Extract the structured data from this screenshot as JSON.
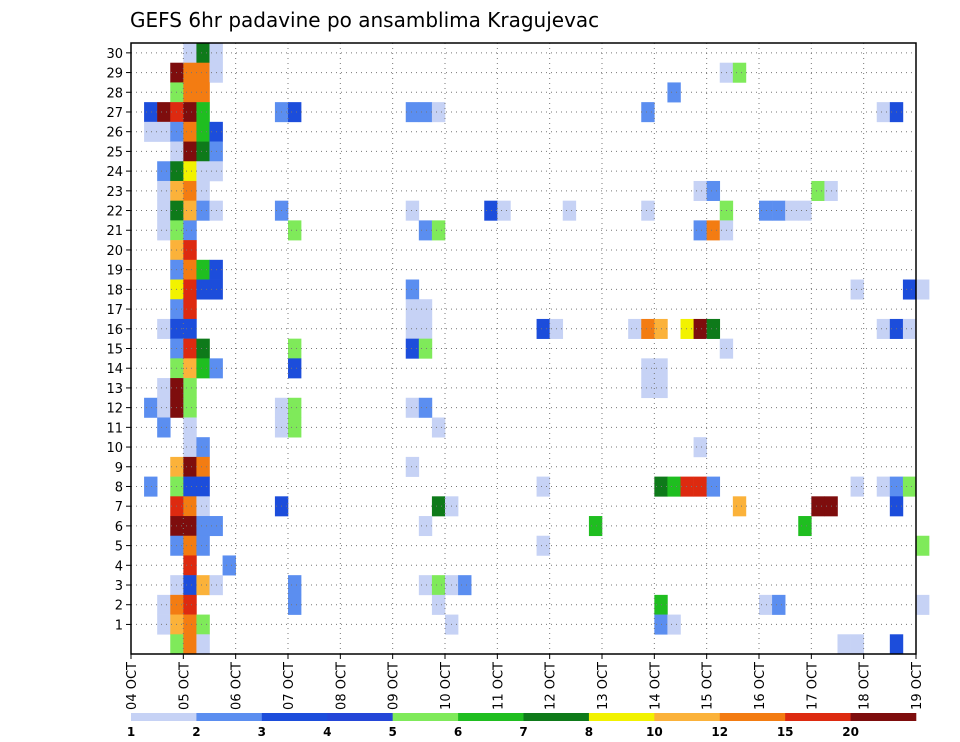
{
  "chart_data": {
    "type": "heatmap",
    "title": "GEFS 6hr padavine po ansamblima Kragujevac",
    "y_ticks": [
      "1",
      "2",
      "3",
      "4",
      "5",
      "6",
      "7",
      "8",
      "9",
      "10",
      "11",
      "12",
      "13",
      "14",
      "15",
      "16",
      "17",
      "18",
      "19",
      "20",
      "21",
      "22",
      "23",
      "24",
      "25",
      "26",
      "27",
      "28",
      "29",
      "30"
    ],
    "x_ticks": [
      "04 OCT",
      "05 OCT",
      "06 OCT",
      "07 OCT",
      "08 OCT",
      "09 OCT",
      "10 OCT",
      "11 OCT",
      "12 OCT",
      "13 OCT",
      "14 OCT",
      "15 OCT",
      "16 OCT",
      "17 OCT",
      "18 OCT",
      "19 OCT"
    ],
    "grid": true,
    "colorbar": {
      "levels": [
        "1",
        "2",
        "3",
        "4",
        "5",
        "6",
        "7",
        "8",
        "10",
        "12",
        "15",
        "20"
      ],
      "colors": [
        "#c6d2f5",
        "#5b8ef0",
        "#1c4ddb",
        "#2446d8",
        "#7fea5a",
        "#1fbe20",
        "#0e7a1a",
        "#f2f200",
        "#fbb23a",
        "#f37c12",
        "#dd2a10",
        "#7e0d0d"
      ]
    },
    "color_levels": {
      "c1": "#c6d2f5",
      "c2": "#5b8ef0",
      "c3": "#1c4ddb",
      "c5": "#7fea5a",
      "c6": "#1fbe20",
      "c7": "#0e7a1a",
      "c8": "#f2f200",
      "c10": "#fbb23a",
      "c12": "#f37c12",
      "c15": "#dd2a10",
      "c20": "#7e0d0d"
    },
    "cells": [
      [
        5,
        30,
        1
      ],
      [
        5.25,
        30,
        7
      ],
      [
        5.5,
        30,
        1
      ],
      [
        4.75,
        29,
        20
      ],
      [
        5,
        29,
        12
      ],
      [
        5.25,
        29,
        12
      ],
      [
        5.5,
        29,
        1
      ],
      [
        15.25,
        29,
        1
      ],
      [
        15.5,
        29,
        5
      ],
      [
        4.75,
        28,
        5
      ],
      [
        5,
        28,
        12
      ],
      [
        5.25,
        28,
        12
      ],
      [
        14.25,
        28,
        2
      ],
      [
        4.25,
        27,
        3
      ],
      [
        4.5,
        27,
        20
      ],
      [
        4.75,
        27,
        15
      ],
      [
        5,
        27,
        20
      ],
      [
        5.25,
        27,
        6
      ],
      [
        6.75,
        27,
        2
      ],
      [
        7,
        27,
        3
      ],
      [
        9.25,
        27,
        2
      ],
      [
        9.5,
        27,
        2
      ],
      [
        9.75,
        27,
        1
      ],
      [
        13.75,
        27,
        2
      ],
      [
        18.25,
        27,
        1
      ],
      [
        18.5,
        27,
        3
      ],
      [
        4.25,
        26,
        1
      ],
      [
        4.5,
        26,
        1
      ],
      [
        4.75,
        26,
        2
      ],
      [
        5,
        26,
        12
      ],
      [
        5.25,
        26,
        6
      ],
      [
        5.5,
        26,
        3
      ],
      [
        4.75,
        25,
        1
      ],
      [
        5,
        25,
        20
      ],
      [
        5.25,
        25,
        7
      ],
      [
        5.5,
        25,
        2
      ],
      [
        4.5,
        24,
        2
      ],
      [
        4.75,
        24,
        7
      ],
      [
        5,
        24,
        8
      ],
      [
        5.25,
        24,
        1
      ],
      [
        5.5,
        24,
        1
      ],
      [
        4.5,
        23,
        1
      ],
      [
        4.75,
        23,
        10
      ],
      [
        5,
        23,
        12
      ],
      [
        5.25,
        23,
        1
      ],
      [
        14.75,
        23,
        1
      ],
      [
        15,
        23,
        2
      ],
      [
        17,
        23,
        5
      ],
      [
        17.25,
        23,
        1
      ],
      [
        4.5,
        22,
        1
      ],
      [
        4.75,
        22,
        7
      ],
      [
        5,
        22,
        10
      ],
      [
        5.25,
        22,
        2
      ],
      [
        5.5,
        22,
        1
      ],
      [
        6.75,
        22,
        2
      ],
      [
        9.25,
        22,
        1
      ],
      [
        10.75,
        22,
        3
      ],
      [
        11,
        22,
        1
      ],
      [
        12.25,
        22,
        1
      ],
      [
        13.75,
        22,
        1
      ],
      [
        15.25,
        22,
        5
      ],
      [
        16,
        22,
        2
      ],
      [
        16.25,
        22,
        2
      ],
      [
        16.5,
        22,
        1
      ],
      [
        16.75,
        22,
        1
      ],
      [
        4.5,
        21,
        1
      ],
      [
        4.75,
        21,
        5
      ],
      [
        5,
        21,
        2
      ],
      [
        7,
        21,
        5
      ],
      [
        9.5,
        21,
        2
      ],
      [
        9.75,
        21,
        5
      ],
      [
        14.75,
        21,
        2
      ],
      [
        15,
        21,
        12
      ],
      [
        15.25,
        21,
        1
      ],
      [
        4.75,
        20,
        10
      ],
      [
        5,
        20,
        15
      ],
      [
        4.75,
        19,
        2
      ],
      [
        5,
        19,
        12
      ],
      [
        5.25,
        19,
        6
      ],
      [
        5.5,
        19,
        3
      ],
      [
        4.75,
        18,
        8
      ],
      [
        5,
        18,
        15
      ],
      [
        5.25,
        18,
        3
      ],
      [
        5.5,
        18,
        3
      ],
      [
        9.25,
        18,
        2
      ],
      [
        17.75,
        18,
        1
      ],
      [
        18.75,
        18,
        3
      ],
      [
        19,
        18,
        1
      ],
      [
        4.75,
        17,
        2
      ],
      [
        5,
        17,
        15
      ],
      [
        9.25,
        17,
        1
      ],
      [
        9.5,
        17,
        1
      ],
      [
        4.5,
        16,
        1
      ],
      [
        4.75,
        16,
        3
      ],
      [
        5,
        16,
        3
      ],
      [
        9.25,
        16,
        1
      ],
      [
        9.5,
        16,
        1
      ],
      [
        11.75,
        16,
        3
      ],
      [
        12,
        16,
        1
      ],
      [
        13.5,
        16,
        1
      ],
      [
        13.75,
        16,
        12
      ],
      [
        14,
        16,
        10
      ],
      [
        14.5,
        16,
        8
      ],
      [
        14.75,
        16,
        20
      ],
      [
        15,
        16,
        7
      ],
      [
        18.25,
        16,
        1
      ],
      [
        18.5,
        16,
        3
      ],
      [
        18.75,
        16,
        1
      ],
      [
        4.75,
        15,
        2
      ],
      [
        5,
        15,
        15
      ],
      [
        5.25,
        15,
        7
      ],
      [
        7,
        15,
        5
      ],
      [
        9.25,
        15,
        3
      ],
      [
        9.5,
        15,
        5
      ],
      [
        15.25,
        15,
        1
      ],
      [
        4.75,
        14,
        5
      ],
      [
        5,
        14,
        10
      ],
      [
        5.25,
        14,
        6
      ],
      [
        5.5,
        14,
        2
      ],
      [
        7,
        14,
        3
      ],
      [
        13.75,
        14,
        1
      ],
      [
        14,
        14,
        1
      ],
      [
        4.5,
        13,
        1
      ],
      [
        4.75,
        13,
        20
      ],
      [
        5,
        13,
        5
      ],
      [
        13.75,
        13,
        1
      ],
      [
        14,
        13,
        1
      ],
      [
        4.25,
        12,
        2
      ],
      [
        4.5,
        12,
        1
      ],
      [
        4.75,
        12,
        20
      ],
      [
        5,
        12,
        5
      ],
      [
        6.75,
        12,
        1
      ],
      [
        7,
        12,
        5
      ],
      [
        9.25,
        12,
        1
      ],
      [
        9.5,
        12,
        2
      ],
      [
        4.5,
        11,
        2
      ],
      [
        5,
        11,
        1
      ],
      [
        6.75,
        11,
        1
      ],
      [
        7,
        11,
        5
      ],
      [
        9.75,
        11,
        1
      ],
      [
        5,
        10,
        1
      ],
      [
        5.25,
        10,
        2
      ],
      [
        14.75,
        10,
        1
      ],
      [
        4.75,
        9,
        10
      ],
      [
        5,
        9,
        20
      ],
      [
        5.25,
        9,
        12
      ],
      [
        9.25,
        9,
        1
      ],
      [
        4.25,
        8,
        2
      ],
      [
        4.75,
        8,
        5
      ],
      [
        5,
        8,
        3
      ],
      [
        5.25,
        8,
        3
      ],
      [
        11.75,
        8,
        1
      ],
      [
        14,
        8,
        7
      ],
      [
        14.25,
        8,
        6
      ],
      [
        14.5,
        8,
        15
      ],
      [
        14.75,
        8,
        15
      ],
      [
        15,
        8,
        2
      ],
      [
        17.75,
        8,
        1
      ],
      [
        18.25,
        8,
        1
      ],
      [
        18.5,
        8,
        2
      ],
      [
        18.75,
        8,
        5
      ],
      [
        4.75,
        7,
        15
      ],
      [
        5,
        7,
        12
      ],
      [
        5.25,
        7,
        1
      ],
      [
        6.75,
        7,
        3
      ],
      [
        9.75,
        7,
        7
      ],
      [
        10,
        7,
        1
      ],
      [
        15.5,
        7,
        10
      ],
      [
        17,
        7,
        20
      ],
      [
        17.25,
        7,
        20
      ],
      [
        18.5,
        7,
        3
      ],
      [
        4.75,
        6,
        20
      ],
      [
        5,
        6,
        20
      ],
      [
        5.25,
        6,
        2
      ],
      [
        5.5,
        6,
        2
      ],
      [
        9.5,
        6,
        1
      ],
      [
        12.75,
        6,
        6
      ],
      [
        16.75,
        6,
        6
      ],
      [
        4.75,
        5,
        2
      ],
      [
        5,
        5,
        12
      ],
      [
        5.25,
        5,
        2
      ],
      [
        11.75,
        5,
        1
      ],
      [
        19,
        5,
        5
      ],
      [
        5,
        4,
        15
      ],
      [
        5.75,
        4,
        2
      ],
      [
        4.75,
        3,
        1
      ],
      [
        5,
        3,
        3
      ],
      [
        5.25,
        3,
        10
      ],
      [
        5.5,
        3,
        1
      ],
      [
        7,
        3,
        2
      ],
      [
        9.5,
        3,
        1
      ],
      [
        9.75,
        3,
        5
      ],
      [
        10,
        3,
        1
      ],
      [
        10.25,
        3,
        2
      ],
      [
        4.5,
        2,
        1
      ],
      [
        4.75,
        2,
        12
      ],
      [
        5,
        2,
        15
      ],
      [
        7,
        2,
        2
      ],
      [
        9.75,
        2,
        1
      ],
      [
        14,
        2,
        6
      ],
      [
        16,
        2,
        1
      ],
      [
        16.25,
        2,
        2
      ],
      [
        19,
        2,
        1
      ],
      [
        4.5,
        1,
        1
      ],
      [
        4.75,
        1,
        10
      ],
      [
        5,
        1,
        12
      ],
      [
        5.25,
        1,
        5
      ],
      [
        10,
        1,
        1
      ],
      [
        14,
        1,
        2
      ],
      [
        14.25,
        1,
        1
      ],
      [
        4.75,
        0,
        5
      ],
      [
        5,
        0,
        12
      ],
      [
        5.25,
        0,
        1
      ],
      [
        17.5,
        0,
        1
      ],
      [
        17.75,
        0,
        1
      ],
      [
        18.5,
        0,
        3
      ]
    ]
  }
}
